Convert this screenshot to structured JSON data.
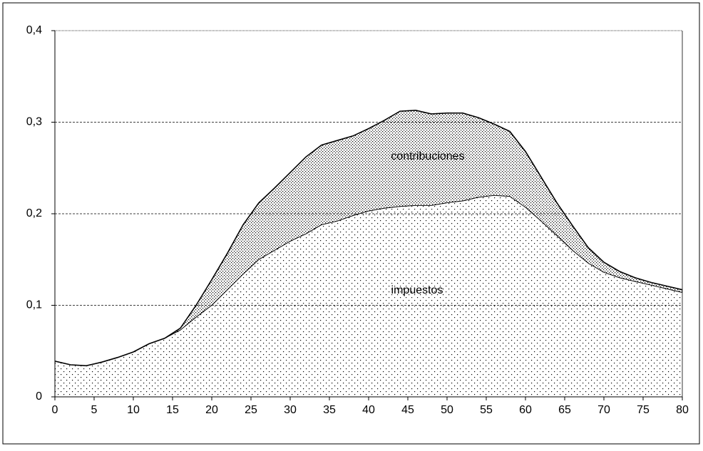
{
  "chart_data": {
    "type": "stacked-area",
    "x": [
      0,
      2,
      4,
      6,
      8,
      10,
      12,
      14,
      16,
      18,
      20,
      22,
      24,
      26,
      28,
      30,
      32,
      34,
      36,
      38,
      40,
      42,
      44,
      46,
      48,
      50,
      52,
      54,
      56,
      58,
      60,
      62,
      64,
      66,
      68,
      70,
      72,
      74,
      76,
      78,
      80
    ],
    "series": [
      {
        "name": "impuestos",
        "color": "#000000",
        "values": [
          0.039,
          0.035,
          0.034,
          0.038,
          0.043,
          0.049,
          0.058,
          0.064,
          0.073,
          0.087,
          0.1,
          0.117,
          0.134,
          0.15,
          0.16,
          0.17,
          0.178,
          0.188,
          0.192,
          0.198,
          0.203,
          0.206,
          0.208,
          0.209,
          0.209,
          0.212,
          0.214,
          0.218,
          0.22,
          0.219,
          0.207,
          0.192,
          0.176,
          0.16,
          0.146,
          0.136,
          0.13,
          0.126,
          0.122,
          0.118,
          0.114
        ]
      },
      {
        "name": "contribuciones",
        "color": "#000000",
        "values": [
          0,
          0,
          0,
          0,
          0,
          0,
          0,
          0,
          0.002,
          0.013,
          0.028,
          0.04,
          0.054,
          0.062,
          0.068,
          0.075,
          0.084,
          0.087,
          0.088,
          0.087,
          0.09,
          0.096,
          0.104,
          0.104,
          0.1,
          0.098,
          0.096,
          0.087,
          0.078,
          0.071,
          0.061,
          0.048,
          0.036,
          0.027,
          0.017,
          0.011,
          0.007,
          0.004,
          0.003,
          0.003,
          0.003
        ]
      }
    ],
    "xlim": [
      0,
      80
    ],
    "xticks": [
      0,
      5,
      10,
      15,
      20,
      25,
      30,
      35,
      40,
      45,
      50,
      55,
      60,
      65,
      70,
      75,
      80
    ],
    "ylim": [
      0,
      0.4
    ],
    "yticks": [
      0,
      {
        "value": 0.1,
        "label": "0,1"
      },
      {
        "value": 0.2,
        "label": "0,2"
      },
      {
        "value": 0.3,
        "label": "0,3"
      },
      {
        "value": 0.4,
        "label": "0,4"
      }
    ],
    "grid": true
  }
}
